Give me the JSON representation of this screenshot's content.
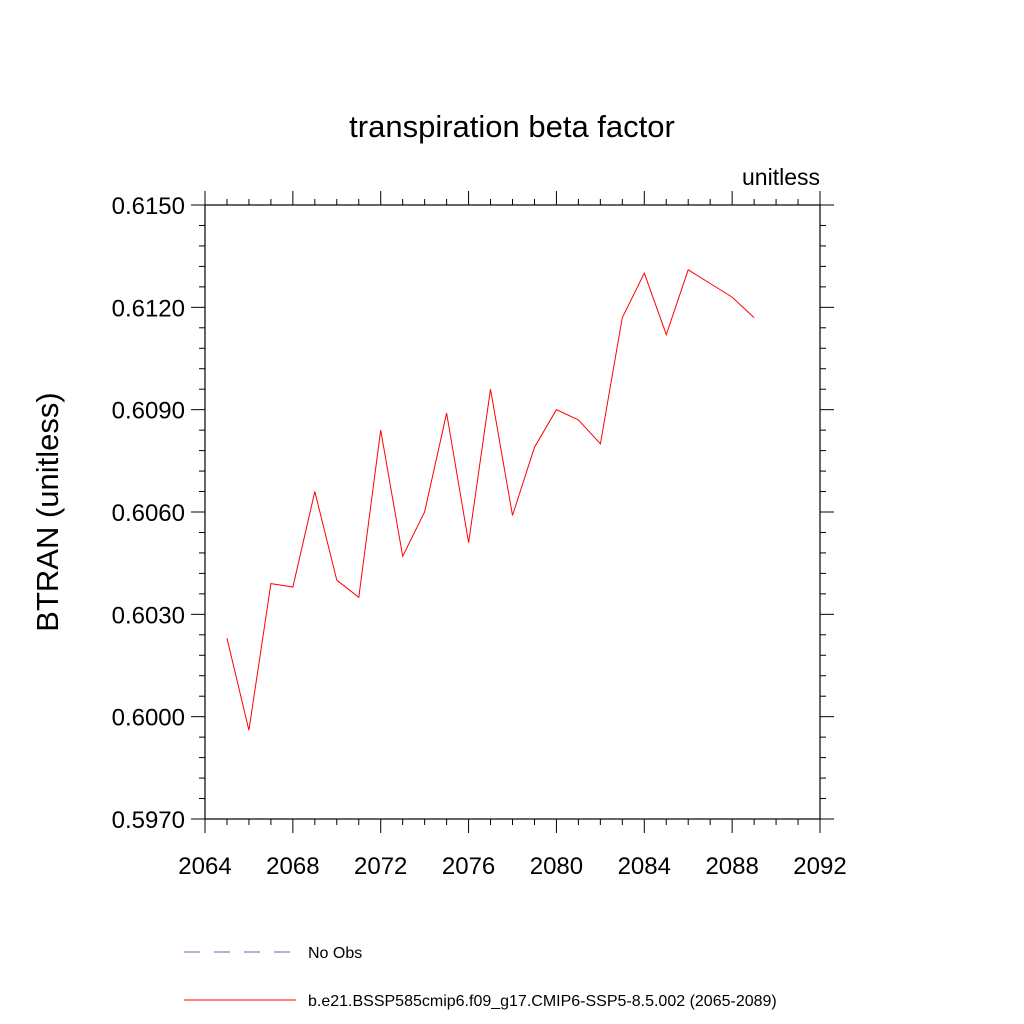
{
  "chart_data": {
    "type": "line",
    "title": "transpiration beta factor",
    "units_label": "unitless",
    "ylabel": "BTRAN  (unitless)",
    "xlabel": "",
    "xlim": [
      2064,
      2092
    ],
    "ylim": [
      0.597,
      0.615
    ],
    "x_major_ticks": [
      2064,
      2068,
      2072,
      2076,
      2080,
      2084,
      2088,
      2092
    ],
    "y_major_ticks": [
      0.597,
      0.6,
      0.603,
      0.606,
      0.609,
      0.612,
      0.615
    ],
    "y_tick_labels": [
      "0.5970",
      "0.6000",
      "0.6030",
      "0.6060",
      "0.6090",
      "0.6120",
      "0.6150"
    ],
    "x_tick_labels": [
      "2064",
      "2068",
      "2072",
      "2076",
      "2080",
      "2084",
      "2088",
      "2092"
    ],
    "grid": false,
    "legend_placement": "bottom",
    "series": [
      {
        "name": "b.e21.BSSP585cmip6.f09_g17.CMIP6-SSP5-8.5.002 (2065-2089)",
        "color": "#ff0000",
        "style": "solid",
        "x": [
          2065,
          2066,
          2067,
          2068,
          2069,
          2070,
          2071,
          2072,
          2073,
          2074,
          2075,
          2076,
          2077,
          2078,
          2079,
          2080,
          2081,
          2082,
          2083,
          2084,
          2085,
          2086,
          2087,
          2088,
          2089
        ],
        "values": [
          0.6023,
          0.5996,
          0.6039,
          0.6038,
          0.6066,
          0.604,
          0.6035,
          0.6084,
          0.6047,
          0.606,
          0.6089,
          0.6051,
          0.6096,
          0.6059,
          0.6079,
          0.609,
          0.6087,
          0.608,
          0.6117,
          0.613,
          0.6112,
          0.6131,
          0.6127,
          0.6123,
          0.6117
        ]
      }
    ],
    "legend": [
      {
        "label": "No Obs",
        "color": "#6666aa",
        "style": "dashed"
      },
      {
        "label": "b.e21.BSSP585cmip6.f09_g17.CMIP6-SSP5-8.5.002 (2065-2089)",
        "color": "#ff0000",
        "style": "solid"
      }
    ]
  }
}
